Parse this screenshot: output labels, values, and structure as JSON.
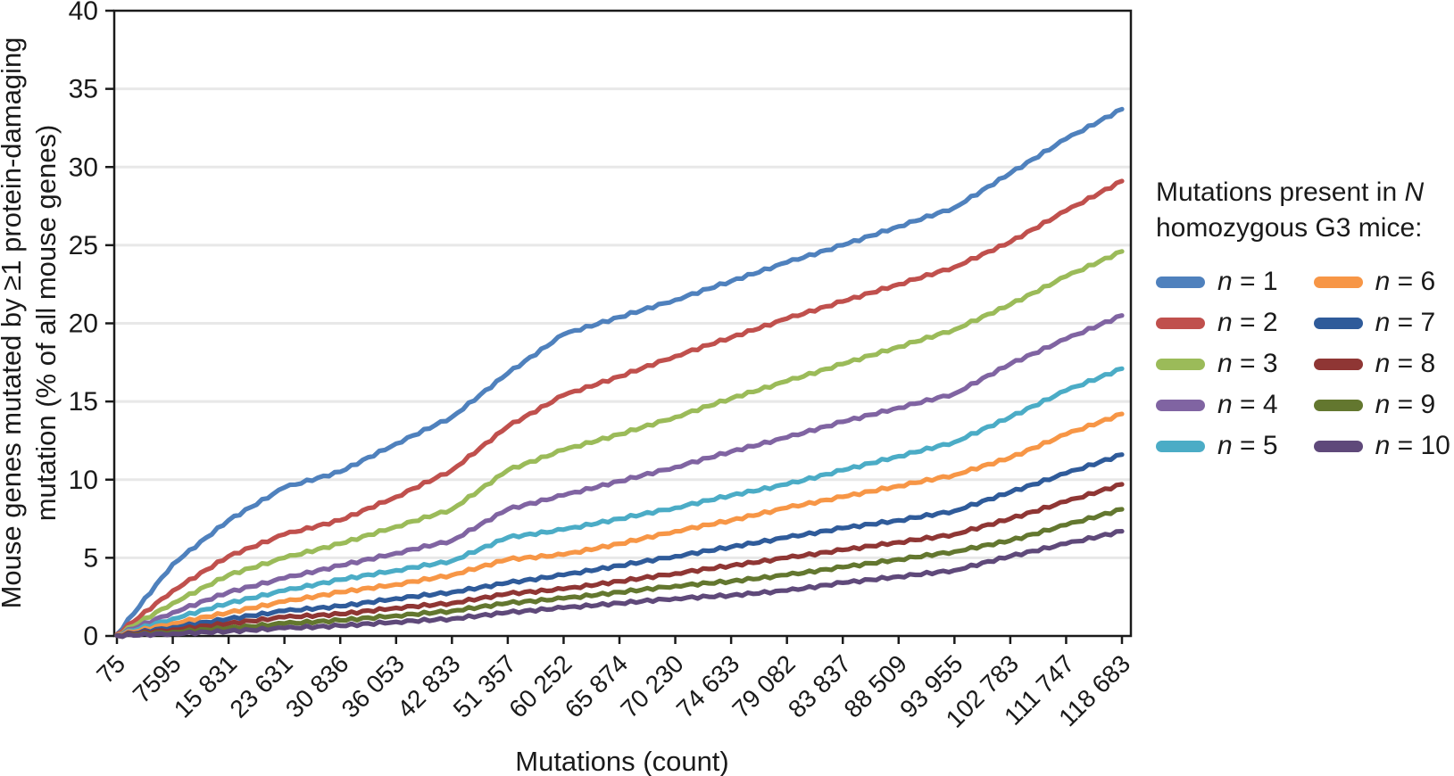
{
  "legend": {
    "title_prefix": "Mutations present in ",
    "title_italic": "N",
    "title_line2": "homozygous G3 mice:",
    "position": "right"
  },
  "y_axis": {
    "title_line1": "Mouse genes mutated by ≥1 protein-damaging",
    "title_line2": "mutation (% of all mouse genes)"
  },
  "chart_data": {
    "type": "line",
    "title": "",
    "xlabel": "Mutations (count)",
    "ylabel": "Mouse genes mutated by ≥1 protein-damaging mutation (% of all mouse genes)",
    "ylim": [
      0,
      40
    ],
    "y_ticks": [
      0,
      5,
      10,
      15,
      20,
      25,
      30,
      35,
      40
    ],
    "grid": "horizontal",
    "gridline_color": "#e8e8e8",
    "axis_color": "#1a1a1a",
    "legend_position": "right",
    "categories": [
      75,
      7595,
      15831,
      23631,
      30836,
      36053,
      42833,
      51357,
      60252,
      65874,
      70230,
      74633,
      79082,
      83837,
      88509,
      93955,
      102783,
      111747,
      118683
    ],
    "x_tick_labels": [
      "75",
      "7595",
      "15 831",
      "23 631",
      "30 836",
      "36 053",
      "42 833",
      "51 357",
      "60 252",
      "65 874",
      "70 230",
      "74 633",
      "79 082",
      "83 837",
      "88 509",
      "93 955",
      "102 783",
      "111 747",
      "118 683"
    ],
    "series": [
      {
        "name": "n = 1",
        "color": "#4F81BD",
        "values": [
          0.1,
          4.6,
          7.4,
          9.5,
          10.5,
          12.3,
          14.0,
          16.8,
          19.3,
          20.4,
          21.5,
          22.7,
          23.9,
          25.0,
          26.2,
          27.4,
          29.6,
          31.8,
          33.7
        ]
      },
      {
        "name": "n = 2",
        "color": "#C0504D",
        "values": [
          0.1,
          2.9,
          5.1,
          6.5,
          7.4,
          8.9,
          10.6,
          13.4,
          15.4,
          16.6,
          17.9,
          19.1,
          20.3,
          21.4,
          22.5,
          23.6,
          25.2,
          27.2,
          29.1
        ]
      },
      {
        "name": "n = 3",
        "color": "#9BBB59",
        "values": [
          0.05,
          2.1,
          3.9,
          5.0,
          5.9,
          7.0,
          8.1,
          10.6,
          11.9,
          12.9,
          14.0,
          15.2,
          16.3,
          17.4,
          18.5,
          19.6,
          21.2,
          23.0,
          24.6
        ]
      },
      {
        "name": "n = 4",
        "color": "#8064A2",
        "values": [
          0.05,
          1.5,
          2.8,
          3.7,
          4.5,
          5.3,
          6.1,
          8.1,
          9.0,
          9.9,
          10.8,
          11.8,
          12.7,
          13.7,
          14.6,
          15.5,
          17.4,
          19.0,
          20.5
        ]
      },
      {
        "name": "n = 5",
        "color": "#4BACC6",
        "values": [
          0.05,
          1.1,
          2.1,
          2.9,
          3.6,
          4.2,
          4.8,
          6.3,
          6.8,
          7.5,
          8.2,
          9.0,
          9.7,
          10.6,
          11.5,
          12.4,
          14.0,
          15.7,
          17.1
        ]
      },
      {
        "name": "n = 6",
        "color": "#F79646",
        "values": [
          0.05,
          0.8,
          1.5,
          2.2,
          2.8,
          3.3,
          3.9,
          4.9,
          5.2,
          5.9,
          6.7,
          7.4,
          8.2,
          8.9,
          9.6,
          10.3,
          11.4,
          12.9,
          14.2
        ]
      },
      {
        "name": "n = 7",
        "color": "#2F5B9A",
        "values": [
          0.03,
          0.55,
          1.1,
          1.6,
          1.9,
          2.4,
          2.8,
          3.4,
          3.9,
          4.5,
          5.1,
          5.7,
          6.3,
          6.9,
          7.4,
          8.0,
          9.2,
          10.4,
          11.6
        ]
      },
      {
        "name": "n = 8",
        "color": "#8F3634",
        "values": [
          0.03,
          0.4,
          0.8,
          1.2,
          1.4,
          1.8,
          2.1,
          2.7,
          3.0,
          3.5,
          4.0,
          4.5,
          5.0,
          5.5,
          6.0,
          6.5,
          7.5,
          8.6,
          9.7
        ]
      },
      {
        "name": "n = 9",
        "color": "#63772F",
        "values": [
          0.02,
          0.25,
          0.5,
          0.8,
          1.0,
          1.3,
          1.6,
          2.1,
          2.4,
          2.8,
          3.2,
          3.5,
          3.9,
          4.4,
          4.9,
          5.4,
          6.1,
          7.1,
          8.1
        ]
      },
      {
        "name": "n = 10",
        "color": "#5F497A",
        "values": [
          0.02,
          0.15,
          0.3,
          0.5,
          0.65,
          0.9,
          1.1,
          1.5,
          1.8,
          2.1,
          2.4,
          2.6,
          2.9,
          3.4,
          3.8,
          4.2,
          5.1,
          5.9,
          6.7
        ]
      }
    ]
  }
}
